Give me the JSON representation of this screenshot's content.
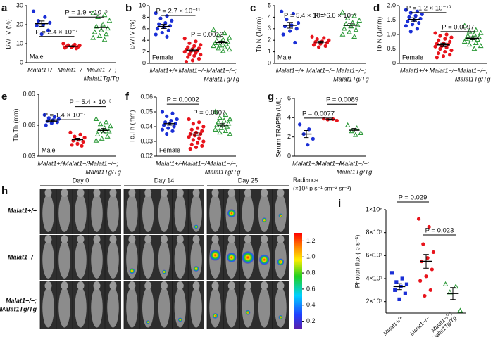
{
  "chart_data": [
    {
      "type": "dot",
      "panel": "a",
      "ylabel": "BV/TV (%)",
      "annotation": "Male",
      "categories": [
        "Malat1+/+",
        "Malat1−/−",
        [
          "Malat1−/−;",
          "Malat1Tg/Tg"
        ]
      ],
      "colors": [
        "#1a2fd6",
        "#e8141c",
        "#2e9a3a"
      ],
      "values": [
        [
          27,
          24,
          22,
          21,
          20,
          19.5,
          17,
          15
        ],
        [
          10,
          9.5,
          9.2,
          9,
          8.7,
          8.5,
          8.3,
          8,
          7.8,
          7.5
        ],
        [
          26,
          25,
          24,
          22,
          20,
          19,
          18,
          17,
          16,
          15,
          14,
          13,
          12
        ]
      ],
      "means": [
        20.5,
        8.6,
        18.5
      ],
      "sems": [
        1.4,
        0.25,
        1.3
      ],
      "ylim": [
        0,
        30
      ],
      "yticks": [
        0,
        10,
        20,
        30
      ],
      "p_values": [
        "P = 2.4 × 10⁻⁷",
        "P = 1.9 × 10⁻⁵"
      ]
    },
    {
      "type": "dot",
      "panel": "b",
      "ylabel": "BV/TV (%)",
      "annotation": "Female",
      "categories": [
        "Malat1+/+",
        "Malat1−/−",
        [
          "Malat1−/−;",
          "Malat1Tg/Tg"
        ]
      ],
      "colors": [
        "#1a2fd6",
        "#e8141c",
        "#2e9a3a"
      ],
      "values": [
        [
          8.7,
          8.2,
          7.8,
          7.4,
          7,
          6.8,
          6.5,
          6.3,
          6,
          5.7,
          5.3,
          5,
          4.6
        ],
        [
          4.3,
          3.8,
          3.5,
          3.2,
          3,
          2.8,
          2.6,
          2.5,
          2.4,
          2.2,
          2.1,
          2,
          1.8,
          1.6,
          1.5,
          1.3,
          1.1,
          0.8,
          0.5,
          0.3
        ],
        [
          5.8,
          5.2,
          4.8,
          4.4,
          4.1,
          3.9,
          3.7,
          3.6,
          3.5,
          3.3,
          3.1,
          3,
          2.8,
          2.6,
          2.4,
          2.1
        ]
      ],
      "means": [
        6.4,
        2.3,
        3.6
      ],
      "sems": [
        0.35,
        0.22,
        0.25
      ],
      "ylim": [
        0,
        10
      ],
      "yticks": [
        0,
        2,
        4,
        6,
        8,
        10
      ],
      "p_values": [
        "P = 2.7 × 10⁻¹¹",
        "P = 0.0012"
      ]
    },
    {
      "type": "dot",
      "panel": "c",
      "ylabel": "Tb.N (1/mm)",
      "annotation": "Male",
      "categories": [
        "Malat1+/+",
        "Malat1−/−",
        [
          "Malat1−/−;",
          "Malat1Tg/Tg"
        ]
      ],
      "colors": [
        "#1a2fd6",
        "#e8141c",
        "#2e9a3a"
      ],
      "values": [
        [
          4.5,
          4.3,
          3.8,
          3.5,
          3.3,
          3.2,
          3,
          2.8,
          2.5,
          1.8
        ],
        [
          2.3,
          2.2,
          2.1,
          2,
          1.9,
          1.85,
          1.8,
          1.7,
          1.6,
          1.5,
          1.4
        ],
        [
          4.4,
          4.1,
          3.9,
          3.7,
          3.5,
          3.4,
          3.3,
          3.2,
          3,
          2.9,
          2.7,
          2.5,
          2.3
        ]
      ],
      "means": [
        3.3,
        1.85,
        3.3
      ],
      "sems": [
        0.25,
        0.08,
        0.17
      ],
      "ylim": [
        0,
        5
      ],
      "yticks": [
        0,
        1,
        2,
        3,
        4,
        5
      ],
      "p_values": [
        "P = 5.4 × 10⁻⁵",
        "P = 6.6 × 10⁻⁶"
      ]
    },
    {
      "type": "dot",
      "panel": "d",
      "ylabel": "Tb.N (1/mm)",
      "annotation": "Female",
      "categories": [
        "Malat1+/+",
        "Malat1−/−",
        [
          "Malat1−/−;",
          "Malat1Tg/Tg"
        ]
      ],
      "colors": [
        "#1a2fd6",
        "#e8141c",
        "#2e9a3a"
      ],
      "values": [
        [
          1.85,
          1.8,
          1.75,
          1.7,
          1.65,
          1.6,
          1.55,
          1.5,
          1.45,
          1.4,
          1.35,
          1.3,
          1.2,
          1.1
        ],
        [
          1.05,
          1,
          0.95,
          0.9,
          0.85,
          0.8,
          0.75,
          0.7,
          0.68,
          0.65,
          0.6,
          0.58,
          0.55,
          0.5,
          0.45,
          0.4,
          0.35,
          0.3,
          0.25,
          0.2
        ],
        [
          1.3,
          1.15,
          1.1,
          1.05,
          1,
          0.95,
          0.9,
          0.88,
          0.85,
          0.82,
          0.8,
          0.75,
          0.7,
          0.65,
          0.6,
          0.5
        ]
      ],
      "means": [
        1.52,
        0.64,
        0.87
      ],
      "sems": [
        0.06,
        0.06,
        0.05
      ],
      "ylim": [
        0,
        2
      ],
      "yticks": [
        0,
        0.5,
        {
          "value": 1,
          "label": "1.0"
        },
        1.5,
        {
          "value": 2,
          "label": "2.0"
        }
      ],
      "p_values": [
        "P = 1.2 × 10⁻¹⁰",
        "P = 0.0097"
      ]
    },
    {
      "type": "dot",
      "panel": "e",
      "ylabel": "Tb.Th (mm)",
      "annotation": "Male",
      "categories": [
        "Malat1+/+",
        "Malat1−/−",
        [
          "Malat1−/−;",
          "Malat1Tg/Tg"
        ]
      ],
      "colors": [
        "#1a2fd6",
        "#e8141c",
        "#2e9a3a"
      ],
      "values": [
        [
          0.07,
          0.068,
          0.067,
          0.066,
          0.065,
          0.064,
          0.063,
          0.062,
          0.06
        ],
        [
          0.053,
          0.051,
          0.049,
          0.048,
          0.046,
          0.045,
          0.044,
          0.042,
          0.041,
          0.04
        ],
        [
          0.066,
          0.063,
          0.061,
          0.059,
          0.057,
          0.055,
          0.054,
          0.053,
          0.051,
          0.049,
          0.047,
          0.045
        ]
      ],
      "means": [
        0.064,
        0.046,
        0.055
      ],
      "sems": [
        0.001,
        0.0014,
        0.0018
      ],
      "ylim": [
        0.03,
        0.09
      ],
      "yticks": [
        0.03,
        0.06,
        0.09
      ],
      "p_values": [
        "P = 1.4 × 10⁻⁷",
        "P = 5.4 × 10⁻³"
      ]
    },
    {
      "type": "dot",
      "panel": "f",
      "ylabel": "Tb.Th (mm)",
      "annotation": "Female",
      "categories": [
        "Malat1+/+",
        "Malat1−/−",
        [
          "Malat1−/−;",
          "Malat1Tg/Tg"
        ]
      ],
      "colors": [
        "#1a2fd6",
        "#e8141c",
        "#2e9a3a"
      ],
      "values": [
        [
          0.05,
          0.049,
          0.047,
          0.045,
          0.044,
          0.043,
          0.042,
          0.042,
          0.041,
          0.04,
          0.039,
          0.038,
          0.037,
          0.035
        ],
        [
          0.045,
          0.043,
          0.042,
          0.04,
          0.039,
          0.038,
          0.037,
          0.036,
          0.035,
          0.035,
          0.034,
          0.033,
          0.032,
          0.031,
          0.03,
          0.029,
          0.028,
          0.027,
          0.026,
          0.025
        ],
        [
          0.05,
          0.048,
          0.046,
          0.045,
          0.044,
          0.043,
          0.042,
          0.041,
          0.041,
          0.04,
          0.039,
          0.038,
          0.037,
          0.036,
          0.035
        ]
      ],
      "means": [
        0.042,
        0.035,
        0.041
      ],
      "sems": [
        0.001,
        0.0012,
        0.001
      ],
      "ylim": [
        0.02,
        0.06
      ],
      "yticks": [
        0.02,
        0.03,
        0.04,
        0.05,
        0.06
      ],
      "p_values": [
        "P = 0.0002",
        "P = 0.0007"
      ]
    },
    {
      "type": "dot",
      "panel": "g",
      "ylabel": "Serum TRAP5b (U/L)",
      "categories": [
        "Malat1+/+",
        "Malat1−/−",
        [
          "Malat1−/−;",
          "Malat1Tg/Tg"
        ]
      ],
      "colors": [
        "#1a2fd6",
        "#e8141c",
        "#2e9a3a"
      ],
      "values": [
        [
          3.3,
          2.8,
          2.3,
          1.8,
          1.2
        ],
        [
          3.9,
          3.85,
          3.8,
          3.7
        ],
        [
          3.2,
          2.9,
          2.6,
          2.4,
          2.2
        ]
      ],
      "means": [
        2.3,
        3.8,
        2.7
      ],
      "sems": [
        0.37,
        0.05,
        0.18
      ],
      "ylim": [
        0,
        6
      ],
      "yticks": [
        0,
        2,
        4,
        6
      ],
      "p_values": [
        "P = 0.0077",
        "P = 0.0089"
      ]
    },
    {
      "type": "image-grid",
      "panel": "h",
      "columns": [
        "Day 0",
        "Day 14",
        "Day 25"
      ],
      "rows": [
        [
          "Malat1+/+"
        ],
        [
          "Malat1−/−"
        ],
        [
          "Malat1−/−;",
          "Malat1Tg/Tg"
        ]
      ],
      "colorbar_title": [
        "Radiance",
        "(×10⁸ p s⁻¹ cm⁻² sr⁻¹)"
      ],
      "clim": [
        0.1,
        1.3
      ],
      "cticks": [
        0.2,
        0.4,
        0.6,
        0.8,
        {
          "value": 1,
          "label": "1.0"
        },
        1.2
      ]
    },
    {
      "type": "dot",
      "panel": "i",
      "ylabel": "Photon flux ( p s⁻¹)",
      "categories": [
        "Malat1+/+",
        "Malat1−/−",
        [
          "Malat1−/−;",
          "Malat1Tg/Tg"
        ]
      ],
      "colors": [
        "#1a2fd6",
        "#e8141c",
        "#2e9a3a"
      ],
      "values": [
        [
          45000000,
          40000000,
          37000000,
          35000000,
          33000000,
          30000000,
          27000000,
          22000000
        ],
        [
          92000000,
          85000000,
          70000000,
          63000000,
          58000000,
          55000000,
          48000000,
          42000000,
          38000000,
          30000000,
          25000000
        ],
        [
          35000000,
          33000000,
          28000000,
          12000000
        ]
      ],
      "means": [
        33000000,
        55000000,
        27000000
      ],
      "sems": [
        2600000,
        6000000,
        5200000
      ],
      "ylim": [
        10000000,
        100000000
      ],
      "yticks": [
        {
          "value": 20000000,
          "label": "2×10⁷"
        },
        {
          "value": 40000000,
          "label": "4×10⁷"
        },
        {
          "value": 60000000,
          "label": "6×10⁷"
        },
        {
          "value": 80000000,
          "label": "8×10⁷"
        },
        {
          "value": 100000000,
          "label": "1×10⁸"
        }
      ],
      "p_values": [
        "P = 0.029",
        "P = 0.023"
      ]
    }
  ]
}
